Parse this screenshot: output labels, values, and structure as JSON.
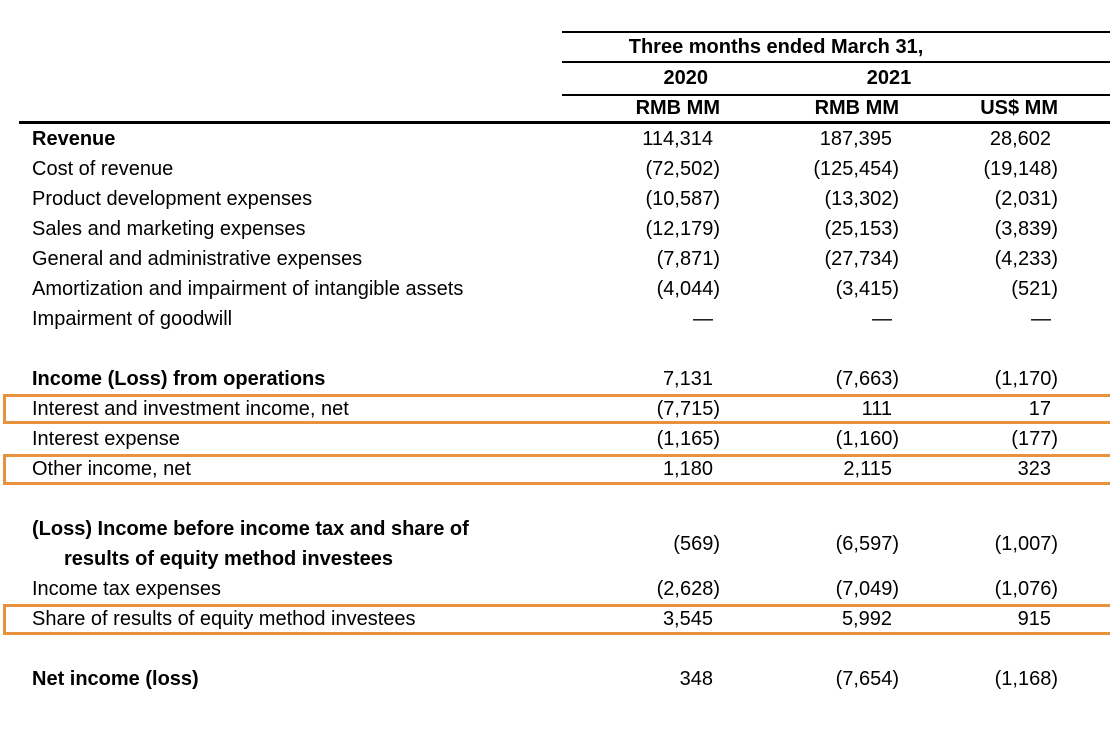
{
  "table": {
    "header": {
      "period": "Three months ended March 31,",
      "year_2020": "2020",
      "year_2021": "2021",
      "units": [
        "RMB MM",
        "RMB MM",
        "US$ MM"
      ]
    },
    "rows": [
      {
        "label": "Revenue",
        "bold": true,
        "values": [
          "114,314",
          "187,395",
          "28,602"
        ]
      },
      {
        "label": "Cost of revenue",
        "values": [
          "(72,502)",
          "(125,454)",
          "(19,148)"
        ]
      },
      {
        "label": "Product development expenses",
        "values": [
          "(10,587)",
          "(13,302)",
          "(2,031)"
        ]
      },
      {
        "label": "Sales and marketing expenses",
        "values": [
          "(12,179)",
          "(25,153)",
          "(3,839)"
        ]
      },
      {
        "label": "General and administrative expenses",
        "values": [
          "(7,871)",
          "(27,734)",
          "(4,233)"
        ]
      },
      {
        "label": "Amortization and impairment of intangible assets",
        "values": [
          "(4,044)",
          "(3,415)",
          "(521)"
        ]
      },
      {
        "label": "Impairment of goodwill",
        "values": [
          "—",
          "—",
          "—"
        ]
      },
      {
        "label": "Income (Loss) from operations",
        "bold": true,
        "values": [
          "7,131",
          "(7,663)",
          "(1,170)"
        ]
      },
      {
        "label": "Interest and investment income, net",
        "highlight": true,
        "values": [
          "(7,715)",
          "111",
          "17"
        ]
      },
      {
        "label": "Interest expense",
        "values": [
          "(1,165)",
          "(1,160)",
          "(177)"
        ]
      },
      {
        "label": "Other income, net",
        "highlight": true,
        "values": [
          "1,180",
          "2,115",
          "323"
        ]
      },
      {
        "label": "(Loss) Income before income tax and share of",
        "label2": "results of equity method investees",
        "bold": true,
        "values": [
          "(569)",
          "(6,597)",
          "(1,007)"
        ]
      },
      {
        "label": "Income tax expenses",
        "values": [
          "(2,628)",
          "(7,049)",
          "(1,076)"
        ]
      },
      {
        "label": "Share of results of equity method investees",
        "highlight": true,
        "values": [
          "3,545",
          "5,992",
          "915"
        ]
      },
      {
        "label": "Net income (loss)",
        "bold": true,
        "values": [
          "348",
          "(7,654)",
          "(1,168)"
        ]
      }
    ]
  },
  "colors": {
    "highlight_border": "#E8923E",
    "text": "#000000",
    "background": "#FFFFFF"
  }
}
